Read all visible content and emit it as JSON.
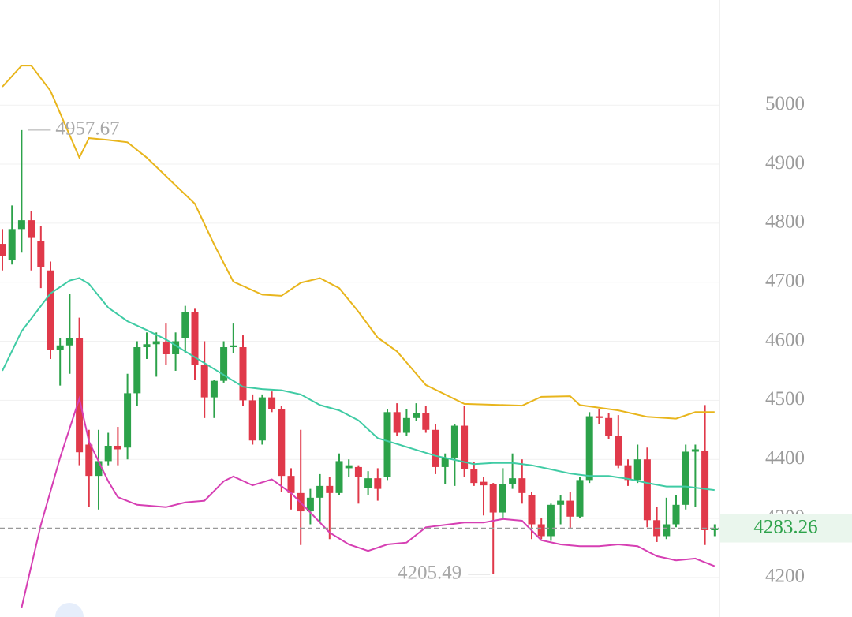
{
  "chart_data": {
    "type": "candlestick",
    "ylim": [
      4133,
      5178
    ],
    "yticks": [
      4200,
      4300,
      4400,
      4500,
      4600,
      4700,
      4800,
      4900,
      5000
    ],
    "grid": true,
    "up_color": "#2ca24a",
    "down_color": "#e0394a",
    "open": [
      4765,
      4737,
      4790,
      4805,
      4770,
      4720,
      4585,
      4593,
      4605,
      4425,
      4372,
      4397,
      4423,
      4420,
      4512,
      4590,
      4595,
      4598,
      4578,
      4605,
      4650,
      4560,
      4505,
      4533,
      4590,
      4590,
      4500,
      4432,
      4505,
      4485,
      4372,
      4343,
      4312,
      4335,
      4355,
      4343,
      4385,
      4387,
      4352,
      4368,
      4370,
      4480,
      4445,
      4470,
      4478,
      4450,
      4387,
      4403,
      4457,
      4383,
      4362,
      4358,
      4310,
      4358,
      4368,
      4340,
      4290,
      4270,
      4323,
      4330,
      4303,
      4365,
      4473,
      4470,
      4440,
      4390,
      4365,
      4400,
      4297,
      4270,
      4290,
      4323,
      4413,
      4415,
      4280
    ],
    "high": [
      4790,
      4830,
      4957.67,
      4820,
      4795,
      4735,
      4605,
      4680,
      4640,
      4450,
      4450,
      4445,
      4455,
      4545,
      4600,
      4615,
      4615,
      4630,
      4615,
      4660,
      4655,
      4600,
      4535,
      4600,
      4630,
      4610,
      4510,
      4510,
      4515,
      4490,
      4385,
      4450,
      4350,
      4375,
      4370,
      4410,
      4400,
      4390,
      4380,
      4385,
      4485,
      4495,
      4485,
      4495,
      4490,
      4460,
      4410,
      4460,
      4490,
      4395,
      4370,
      4360,
      4385,
      4410,
      4400,
      4345,
      4300,
      4325,
      4340,
      4345,
      4370,
      4480,
      4485,
      4478,
      4475,
      4400,
      4425,
      4420,
      4320,
      4335,
      4340,
      4425,
      4425,
      4492,
      4290
    ],
    "low": [
      4720,
      4730,
      4750,
      4720,
      4690,
      4570,
      4525,
      4545,
      4390,
      4320,
      4315,
      4390,
      4390,
      4400,
      4490,
      4570,
      4540,
      4560,
      4550,
      4580,
      4535,
      4470,
      4470,
      4530,
      4580,
      4490,
      4425,
      4425,
      4480,
      4345,
      4315,
      4255,
      4290,
      4295,
      4265,
      4340,
      4370,
      4325,
      4340,
      4330,
      4365,
      4440,
      4440,
      4465,
      4445,
      4375,
      4358,
      4355,
      4370,
      4355,
      4305,
      4205.49,
      4300,
      4350,
      4325,
      4265,
      4265,
      4262,
      4290,
      4283,
      4300,
      4360,
      4460,
      4435,
      4385,
      4355,
      4360,
      4285,
      4260,
      4265,
      4285,
      4315,
      4320,
      4255,
      4270
    ],
    "close": [
      4745,
      4790,
      4805,
      4775,
      4725,
      4585,
      4593,
      4605,
      4412,
      4372,
      4397,
      4423,
      4417,
      4512,
      4590,
      4595,
      4600,
      4578,
      4600,
      4650,
      4560,
      4505,
      4533,
      4590,
      4593,
      4500,
      4432,
      4505,
      4485,
      4372,
      4343,
      4312,
      4335,
      4355,
      4343,
      4397,
      4390,
      4370,
      4368,
      4350,
      4480,
      4445,
      4470,
      4478,
      4450,
      4387,
      4403,
      4457,
      4383,
      4360,
      4356,
      4310,
      4358,
      4368,
      4343,
      4290,
      4270,
      4323,
      4330,
      4303,
      4365,
      4473,
      4470,
      4440,
      4390,
      4365,
      4400,
      4297,
      4270,
      4290,
      4323,
      4413,
      4417,
      4280,
      4283.26
    ],
    "lines": [
      {
        "color": "#e8b51c",
        "x": [
          0,
          2,
          3,
          5,
          8,
          9,
          11,
          13,
          15,
          18,
          20,
          22,
          24,
          27,
          29,
          31,
          33,
          35,
          37,
          39,
          41,
          44,
          46,
          48,
          54,
          56,
          59,
          60,
          64,
          67,
          70,
          72,
          74
        ],
        "values": [
          5031,
          5067,
          5067,
          5024,
          4911,
          4944,
          4941,
          4937,
          4911,
          4864,
          4833,
          4764,
          4701,
          4679,
          4677,
          4699,
          4707,
          4690,
          4650,
          4606,
          4583,
          4526,
          4510,
          4494,
          4491,
          4506,
          4507,
          4492,
          4483,
          4472,
          4469,
          4480,
          4480
        ]
      },
      {
        "color": "#3fcba4",
        "x": [
          0,
          2,
          5,
          7,
          8,
          9,
          11,
          13,
          15,
          17,
          19,
          21,
          23,
          25,
          27,
          29,
          31,
          33,
          35,
          37,
          39,
          41,
          43,
          45,
          47,
          49,
          51,
          53,
          55,
          57,
          59,
          61,
          63,
          65,
          67,
          69,
          71,
          73,
          74
        ],
        "values": [
          4550,
          4617,
          4681,
          4703,
          4707,
          4697,
          4657,
          4634,
          4619,
          4603,
          4583,
          4563,
          4543,
          4523,
          4519,
          4517,
          4510,
          4492,
          4483,
          4466,
          4436,
          4426,
          4416,
          4406,
          4399,
          4392,
          4394,
          4394,
          4390,
          4383,
          4376,
          4372,
          4372,
          4367,
          4360,
          4354,
          4354,
          4350,
          4348
        ]
      },
      {
        "color": "#d63fb3",
        "x": [
          2,
          4,
          6,
          8,
          9,
          11,
          12,
          14,
          17,
          19,
          21,
          23,
          24,
          26,
          28,
          30,
          32,
          34,
          36,
          38,
          40,
          42,
          44,
          46,
          48,
          50,
          52,
          54,
          56,
          58,
          60,
          62,
          64,
          66,
          68,
          70,
          72,
          74
        ],
        "values": [
          4149,
          4289,
          4403,
          4503,
          4430,
          4363,
          4336,
          4323,
          4319,
          4327,
          4330,
          4363,
          4371,
          4356,
          4366,
          4343,
          4310,
          4276,
          4256,
          4245,
          4256,
          4259,
          4285,
          4289,
          4293,
          4293,
          4299,
          4296,
          4263,
          4256,
          4253,
          4253,
          4256,
          4253,
          4236,
          4229,
          4232,
          4219
        ]
      }
    ]
  }
}
